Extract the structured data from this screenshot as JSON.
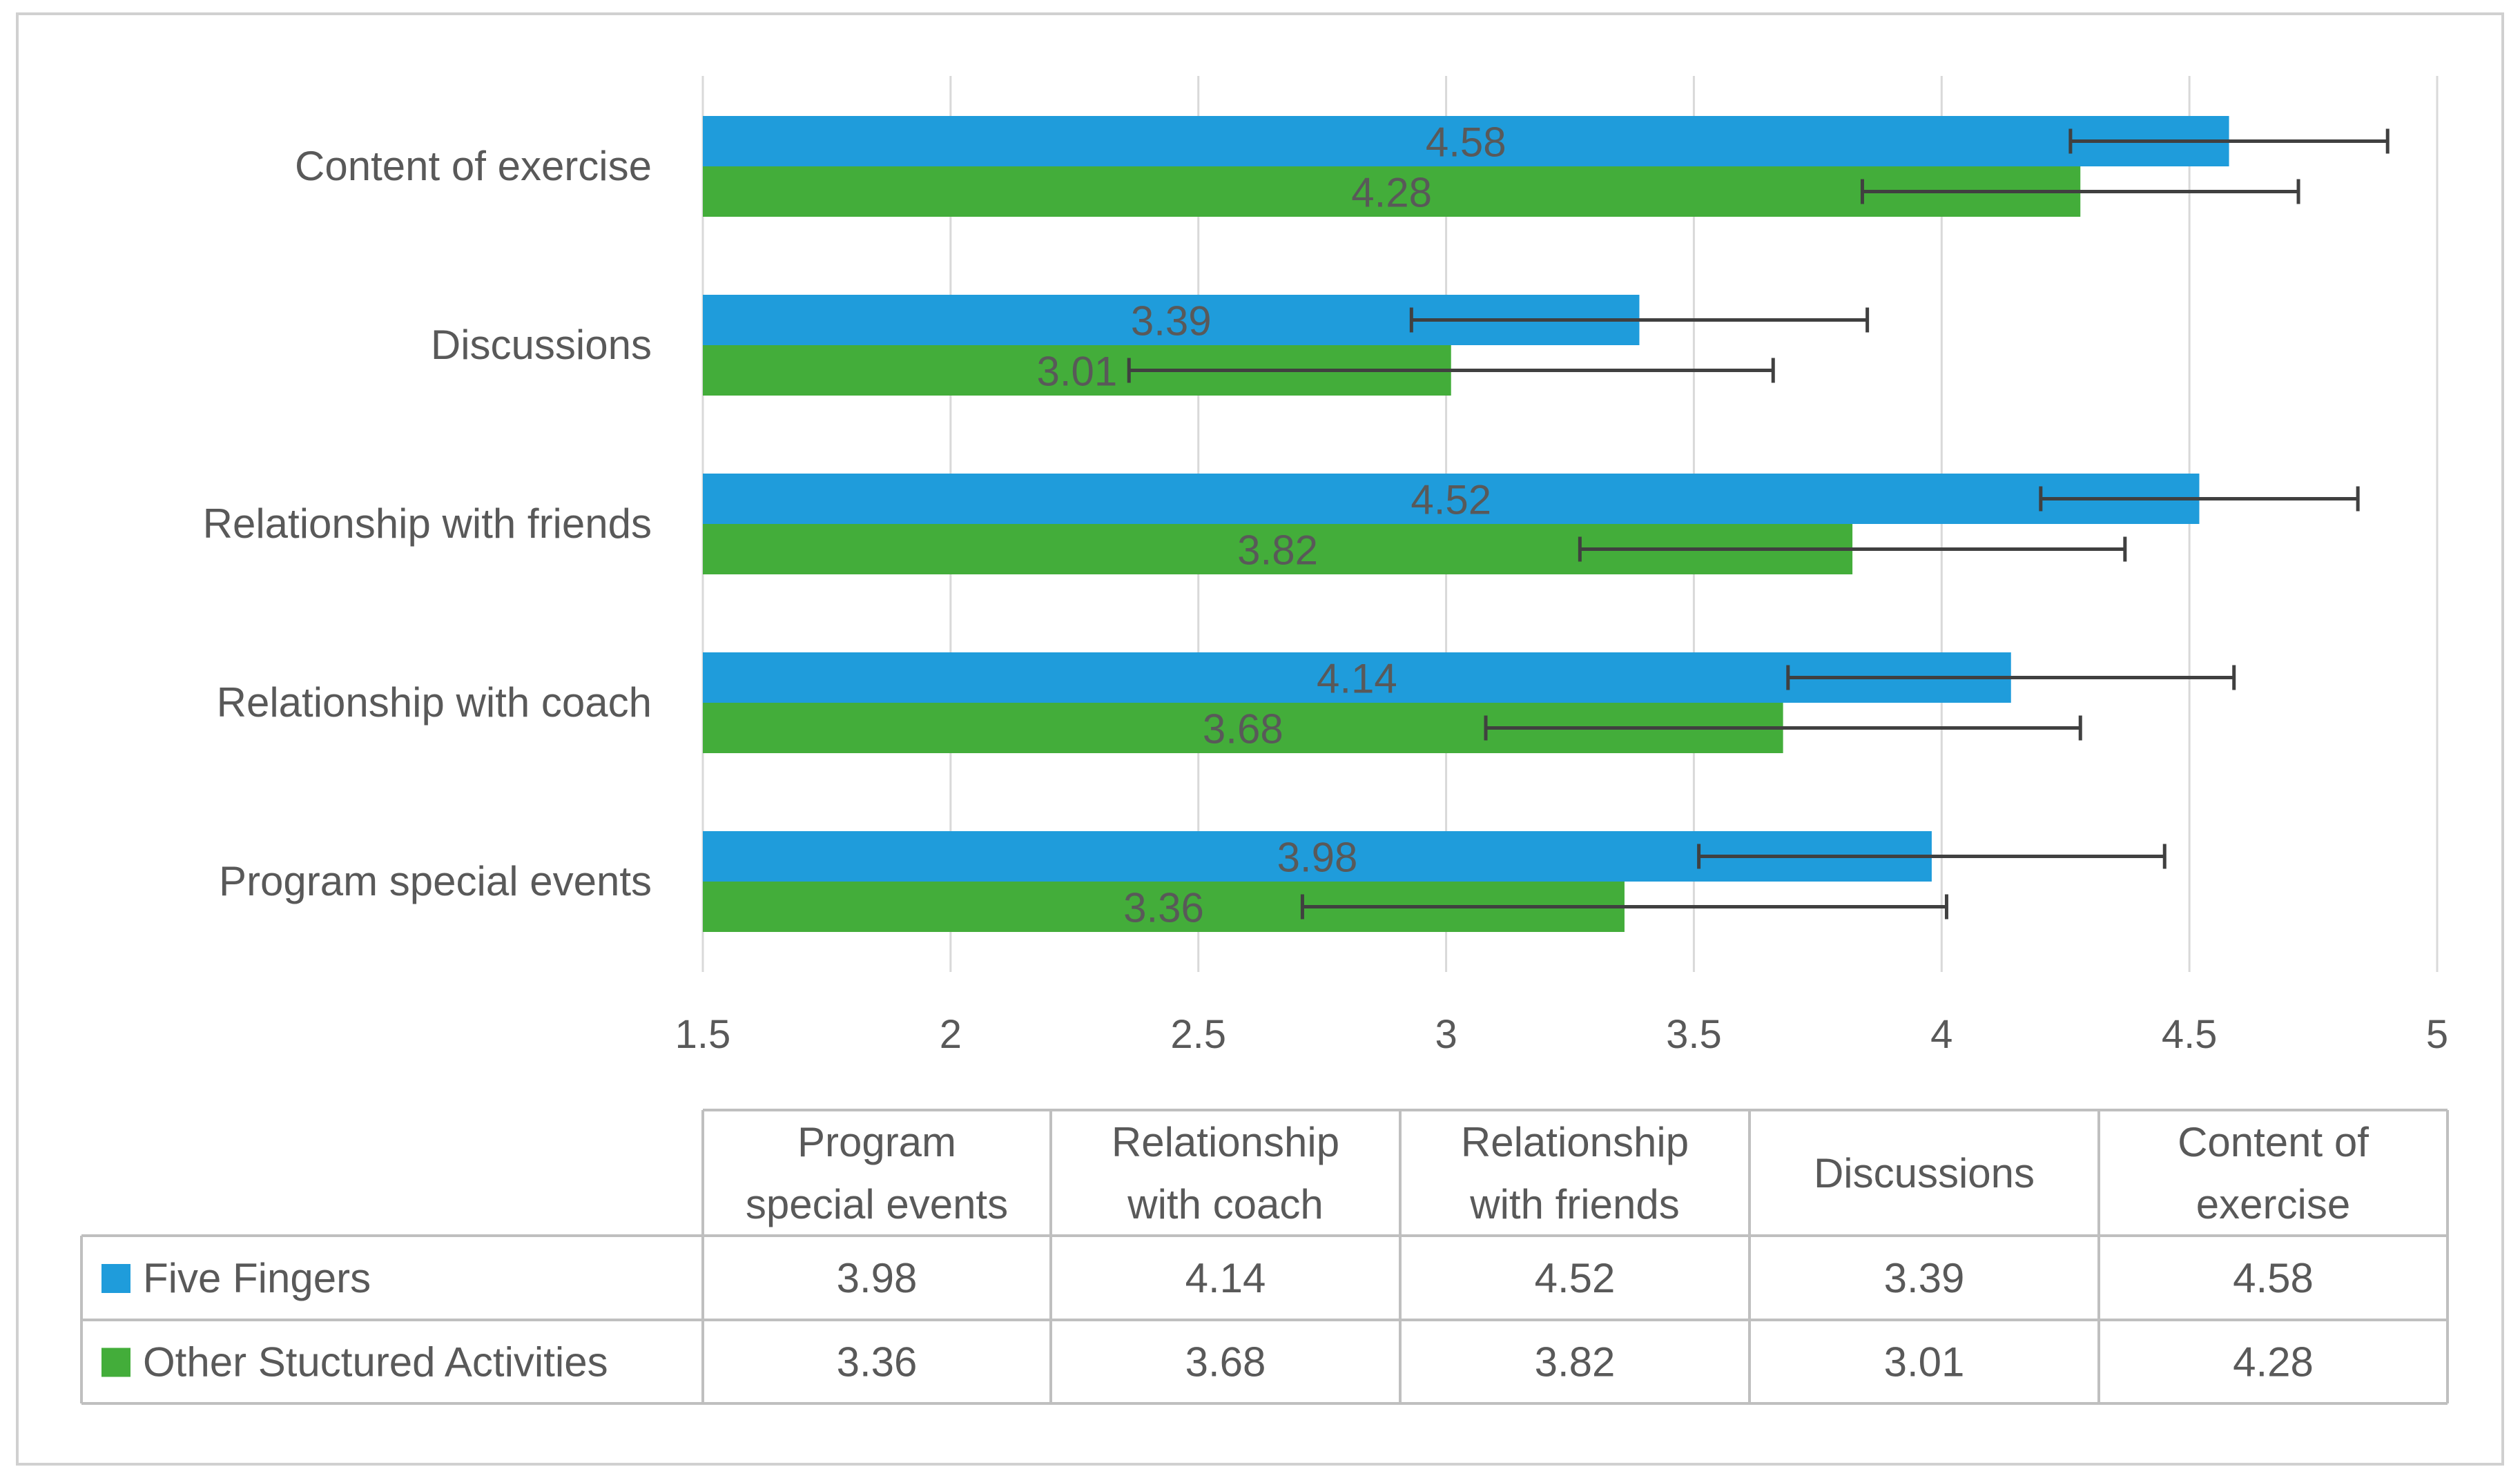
{
  "chart_data": {
    "type": "bar",
    "orientation": "horizontal",
    "categories": [
      "Content of exercise",
      "Discussions",
      "Relationship with friends",
      "Relationship with coach",
      "Program special events"
    ],
    "series": [
      {
        "name": "Five Fingers",
        "color": "#1f9cdb",
        "values": [
          4.58,
          3.39,
          4.52,
          4.14,
          3.98
        ],
        "error_low": [
          4.26,
          2.93,
          4.2,
          3.69,
          3.51
        ],
        "error_high": [
          4.9,
          3.85,
          4.84,
          4.59,
          4.45
        ]
      },
      {
        "name": "Other Stuctured Activities",
        "color": "#43ad3a",
        "values": [
          4.28,
          3.01,
          3.82,
          3.68,
          3.36
        ],
        "error_low": [
          3.84,
          2.36,
          3.27,
          3.08,
          2.71
        ],
        "error_high": [
          4.72,
          3.66,
          4.37,
          4.28,
          4.01
        ]
      }
    ],
    "xlim": [
      1.5,
      5
    ],
    "x_ticks": [
      "1.5",
      "2",
      "2.5",
      "3",
      "3.5",
      "4",
      "4.5",
      "5"
    ],
    "grid": true,
    "data_labels": true,
    "legend": "data-table-below",
    "table": {
      "header": [
        "Program special events",
        "Relationship with coach",
        "Relationship with friends",
        "Discussions",
        "Content of exercise"
      ],
      "rows": [
        {
          "name": "Five Fingers",
          "values": [
            "3.98",
            "4.14",
            "4.52",
            "3.39",
            "4.58"
          ]
        },
        {
          "name": "Other Stuctured Activities",
          "values": [
            "3.36",
            "3.68",
            "3.82",
            "3.01",
            "4.28"
          ]
        }
      ]
    }
  },
  "colors": {
    "text": "#595959",
    "grid": "#d9d9d9",
    "table_border": "#bfbfbf",
    "error_bar": "#404040",
    "frame": "#d0d0d0"
  }
}
